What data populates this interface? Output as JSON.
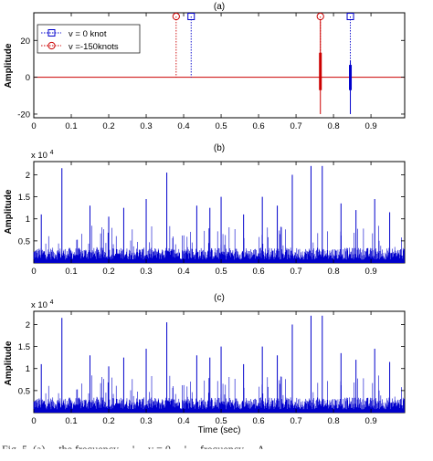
{
  "figure": {
    "panels": [
      {
        "label": "(a)",
        "ylabel": "Amplitude"
      },
      {
        "label": "(b)",
        "ylabel": "Amplitude",
        "exponent_label": "x 10",
        "exponent_power": "4"
      },
      {
        "label": "(c)",
        "ylabel": "Amplitude",
        "exponent_label": "x 10",
        "exponent_power": "4"
      }
    ],
    "xlabel": "Time (sec)",
    "caption": "Fig. 5.  (a) ... the frequency ... ' ... v = 0 ... ' ... frequency ... A"
  },
  "chart_data": [
    {
      "type": "line",
      "title": "(a)",
      "xlabel": "",
      "ylabel": "Amplitude",
      "xlim": [
        0,
        0.99
      ],
      "ylim": [
        -22,
        35
      ],
      "xticks": [
        0,
        0.1,
        0.2,
        0.3,
        0.4,
        0.5,
        0.6,
        0.7,
        0.8,
        0.9
      ],
      "xtick_labels": [
        "0",
        "0.1",
        "0.2",
        "0.3",
        "0.4",
        "0.5",
        "0.6",
        "0.7",
        "0.8",
        "0.9"
      ],
      "yticks": [
        -20,
        0,
        20
      ],
      "ytick_labels": [
        "-20",
        "0",
        "20"
      ],
      "legend_position": "top-left",
      "series": [
        {
          "name": "v = 0 knot",
          "color": "#0000cc",
          "marker": "square",
          "line": "dotted",
          "markers": [
            {
              "x": 0.42,
              "y": 33
            },
            {
              "x": 0.845,
              "y": 33
            }
          ],
          "pulse": {
            "x": 0.845,
            "low": -20,
            "high": 9
          }
        },
        {
          "name": "v =-150knots",
          "color": "#cc0000",
          "marker": "circle",
          "line": "dotted",
          "markers": [
            {
              "x": 0.38,
              "y": 33
            },
            {
              "x": 0.765,
              "y": 33
            }
          ],
          "pulse": {
            "x": 0.765,
            "low": -20,
            "high": 31
          }
        }
      ],
      "baseline": {
        "y": 0,
        "color": "#cc0000"
      },
      "grid": false
    },
    {
      "type": "line",
      "title": "(b)",
      "xlabel": "",
      "ylabel": "Amplitude",
      "y_multiplier": "x 10^4",
      "xlim": [
        0,
        0.99
      ],
      "ylim": [
        0,
        2.3
      ],
      "xticks": [
        0,
        0.1,
        0.2,
        0.3,
        0.4,
        0.5,
        0.6,
        0.7,
        0.8,
        0.9
      ],
      "xtick_labels": [
        "0",
        "0.1",
        "0.2",
        "0.3",
        "0.4",
        "0.5",
        "0.6",
        "0.7",
        "0.8",
        "0.9"
      ],
      "yticks": [
        0.5,
        1,
        1.5,
        2
      ],
      "ytick_labels": [
        "0.5",
        "1",
        "1.5",
        "2"
      ],
      "series": [
        {
          "color": "#0000cc",
          "peaks": [
            {
              "x": 0.075,
              "y": 2.15
            },
            {
              "x": 0.355,
              "y": 2.05
            },
            {
              "x": 0.74,
              "y": 2.2
            },
            {
              "x": 0.69,
              "y": 2.0
            },
            {
              "x": 0.77,
              "y": 2.2
            },
            {
              "x": 0.3,
              "y": 1.45
            },
            {
              "x": 0.47,
              "y": 1.25
            },
            {
              "x": 0.82,
              "y": 1.35
            },
            {
              "x": 0.95,
              "y": 1.15
            },
            {
              "x": 0.02,
              "y": 1.1
            },
            {
              "x": 0.24,
              "y": 1.25
            },
            {
              "x": 0.61,
              "y": 1.5
            },
            {
              "x": 0.435,
              "y": 1.3
            },
            {
              "x": 0.5,
              "y": 1.5
            },
            {
              "x": 0.15,
              "y": 1.3
            },
            {
              "x": 0.56,
              "y": 1.1
            },
            {
              "x": 0.86,
              "y": 1.2
            },
            {
              "x": 0.91,
              "y": 1.45
            },
            {
              "x": 0.2,
              "y": 1.05
            },
            {
              "x": 0.65,
              "y": 1.3
            }
          ],
          "noise_floor": 0.3
        }
      ],
      "grid": false
    },
    {
      "type": "line",
      "title": "(c)",
      "xlabel": "Time (sec)",
      "ylabel": "Amplitude",
      "y_multiplier": "x 10^4",
      "xlim": [
        0,
        0.99
      ],
      "ylim": [
        0,
        2.3
      ],
      "xticks": [
        0,
        0.1,
        0.2,
        0.3,
        0.4,
        0.5,
        0.6,
        0.7,
        0.8,
        0.9
      ],
      "xtick_labels": [
        "0",
        "0.1",
        "0.2",
        "0.3",
        "0.4",
        "0.5",
        "0.6",
        "0.7",
        "0.8",
        "0.9"
      ],
      "yticks": [
        0.5,
        1,
        1.5,
        2
      ],
      "ytick_labels": [
        "0.5",
        "1",
        "1.5",
        "2"
      ],
      "series": [
        {
          "color": "#0000cc",
          "peaks": [
            {
              "x": 0.075,
              "y": 2.15
            },
            {
              "x": 0.355,
              "y": 2.05
            },
            {
              "x": 0.74,
              "y": 2.2
            },
            {
              "x": 0.69,
              "y": 2.0
            },
            {
              "x": 0.77,
              "y": 2.2
            },
            {
              "x": 0.3,
              "y": 1.45
            },
            {
              "x": 0.47,
              "y": 1.25
            },
            {
              "x": 0.82,
              "y": 1.35
            },
            {
              "x": 0.95,
              "y": 1.15
            },
            {
              "x": 0.02,
              "y": 1.1
            },
            {
              "x": 0.24,
              "y": 1.25
            },
            {
              "x": 0.61,
              "y": 1.5
            },
            {
              "x": 0.435,
              "y": 1.3
            },
            {
              "x": 0.5,
              "y": 1.5
            },
            {
              "x": 0.15,
              "y": 1.3
            },
            {
              "x": 0.56,
              "y": 1.1
            },
            {
              "x": 0.86,
              "y": 1.2
            },
            {
              "x": 0.91,
              "y": 1.45
            },
            {
              "x": 0.2,
              "y": 1.05
            },
            {
              "x": 0.65,
              "y": 1.3
            }
          ],
          "noise_floor": 0.3
        }
      ],
      "grid": false
    }
  ]
}
